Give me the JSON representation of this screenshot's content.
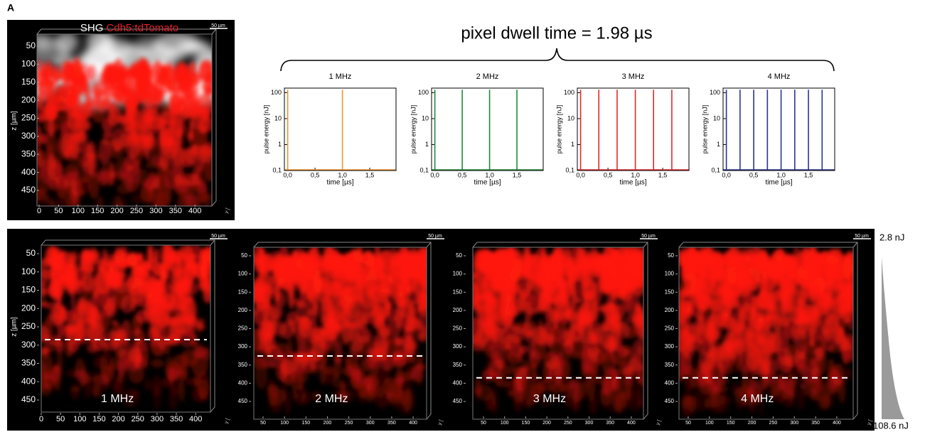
{
  "panel_label": "A",
  "overview": {
    "legend": [
      {
        "text": "SHG",
        "color": "#ffffff"
      },
      {
        "text": "Cdh5:tdTomato",
        "color": "#e8202a"
      }
    ],
    "scale_bar": "50 µm",
    "z_label": "z [µm]",
    "y_label": "y [",
    "z_ticks": [
      50,
      100,
      150,
      200,
      250,
      300,
      350,
      400,
      450
    ],
    "x_ticks": [
      0,
      50,
      100,
      150,
      200,
      250,
      300,
      350,
      400
    ]
  },
  "dwell_time_label": "pixel dwell time = 1.98 µs",
  "chart_data": [
    {
      "type": "stem",
      "title": "1 MHz",
      "x_label": "time [µs]",
      "y_label": "pulse energy [nJ]",
      "color": "#f0922e",
      "log_y": true,
      "x": [
        0,
        1.0
      ],
      "values": [
        130,
        130
      ],
      "xlim": [
        -0.06,
        1.98
      ],
      "ylim": [
        0.1,
        150
      ],
      "xticks": [
        {
          "value": 0,
          "label": "0,0"
        },
        {
          "value": 0.5,
          "label": "0,5"
        },
        {
          "value": 1,
          "label": "1,0"
        },
        {
          "value": 1.5,
          "label": "1,5"
        }
      ],
      "yticks": [
        {
          "value": 0.1,
          "label": "0,1"
        },
        1,
        10,
        100
      ]
    },
    {
      "type": "stem",
      "title": "2 MHz",
      "x_label": "time [µs]",
      "y_label": "pulse energy [nJ]",
      "color": "#1f8a3c",
      "log_y": true,
      "x": [
        0,
        0.5,
        1.0,
        1.5
      ],
      "values": [
        130,
        130,
        130,
        130
      ],
      "xlim": [
        -0.06,
        1.98
      ],
      "ylim": [
        0.1,
        150
      ],
      "xticks": [
        {
          "value": 0,
          "label": "0,0"
        },
        {
          "value": 0.5,
          "label": "0,5"
        },
        {
          "value": 1,
          "label": "1,0"
        },
        {
          "value": 1.5,
          "label": "1,5"
        }
      ],
      "yticks": [
        {
          "value": 0.1,
          "label": "0,1"
        },
        1,
        10,
        100
      ]
    },
    {
      "type": "stem",
      "title": "3 MHz",
      "x_label": "time [µs]",
      "y_label": "pulse energy [nJ]",
      "color": "#e2282c",
      "log_y": true,
      "x": [
        0,
        0.333,
        0.667,
        1.0,
        1.333,
        1.667
      ],
      "values": [
        130,
        130,
        130,
        130,
        130,
        130
      ],
      "xlim": [
        -0.06,
        1.98
      ],
      "ylim": [
        0.1,
        150
      ],
      "xticks": [
        {
          "value": 0,
          "label": "0,0"
        },
        {
          "value": 0.5,
          "label": "0,5"
        },
        {
          "value": 1,
          "label": "1,0"
        },
        {
          "value": 1.5,
          "label": "1,5"
        }
      ],
      "yticks": [
        {
          "value": 0.1,
          "label": "0,1"
        },
        1,
        10,
        100
      ]
    },
    {
      "type": "stem",
      "title": "4 MHz",
      "x_label": "time [µs]",
      "y_label": "pulse energy [nJ]",
      "color": "#2a3590",
      "log_y": true,
      "x": [
        0,
        0.25,
        0.5,
        0.75,
        1.0,
        1.25,
        1.5,
        1.75
      ],
      "values": [
        130,
        130,
        130,
        130,
        130,
        130,
        130,
        130
      ],
      "xlim": [
        -0.06,
        1.98
      ],
      "ylim": [
        0.1,
        150
      ],
      "xticks": [
        {
          "value": 0,
          "label": "0,0"
        },
        {
          "value": 0.5,
          "label": "0,5"
        },
        {
          "value": 1,
          "label": "1,0"
        },
        {
          "value": 1.5,
          "label": "1,5"
        }
      ],
      "yticks": [
        {
          "value": 0.1,
          "label": "0,1"
        },
        1,
        10,
        100
      ]
    }
  ],
  "depth_panels": [
    {
      "label": "1 MHz",
      "scale_bar": "50 µm",
      "z_label": "z [µm]",
      "y_label": "y [",
      "depth_limit": 285,
      "z_ticks": [
        50,
        100,
        150,
        200,
        250,
        300,
        350,
        400,
        450
      ],
      "x_ticks": [
        0,
        50,
        100,
        150,
        200,
        250,
        300,
        350,
        400
      ]
    },
    {
      "label": "2 MHz",
      "scale_bar": "50 µm",
      "y_label": "y [",
      "depth_limit": 325,
      "z_ticks": [
        50,
        100,
        150,
        200,
        250,
        300,
        350,
        400,
        450
      ],
      "x_ticks": [
        50,
        100,
        150,
        200,
        250,
        300,
        350,
        400
      ]
    },
    {
      "label": "3 MHz",
      "scale_bar": "50 µm",
      "y_label": "y [",
      "depth_limit": 385,
      "z_ticks": [
        50,
        100,
        150,
        200,
        250,
        300,
        350,
        400,
        450
      ],
      "x_ticks": [
        50,
        100,
        150,
        200,
        250,
        300,
        350,
        400
      ]
    },
    {
      "label": "4 MHz",
      "scale_bar": "50 µm",
      "y_label": "y [",
      "depth_limit": 385,
      "z_ticks": [
        50,
        100,
        150,
        200,
        250,
        300,
        350,
        400,
        450
      ],
      "x_ticks": [
        50,
        100,
        150,
        200,
        250,
        300,
        350,
        400
      ]
    }
  ],
  "energy_scale": {
    "top": "2.8 nJ",
    "bottom": "108.6 nJ"
  }
}
